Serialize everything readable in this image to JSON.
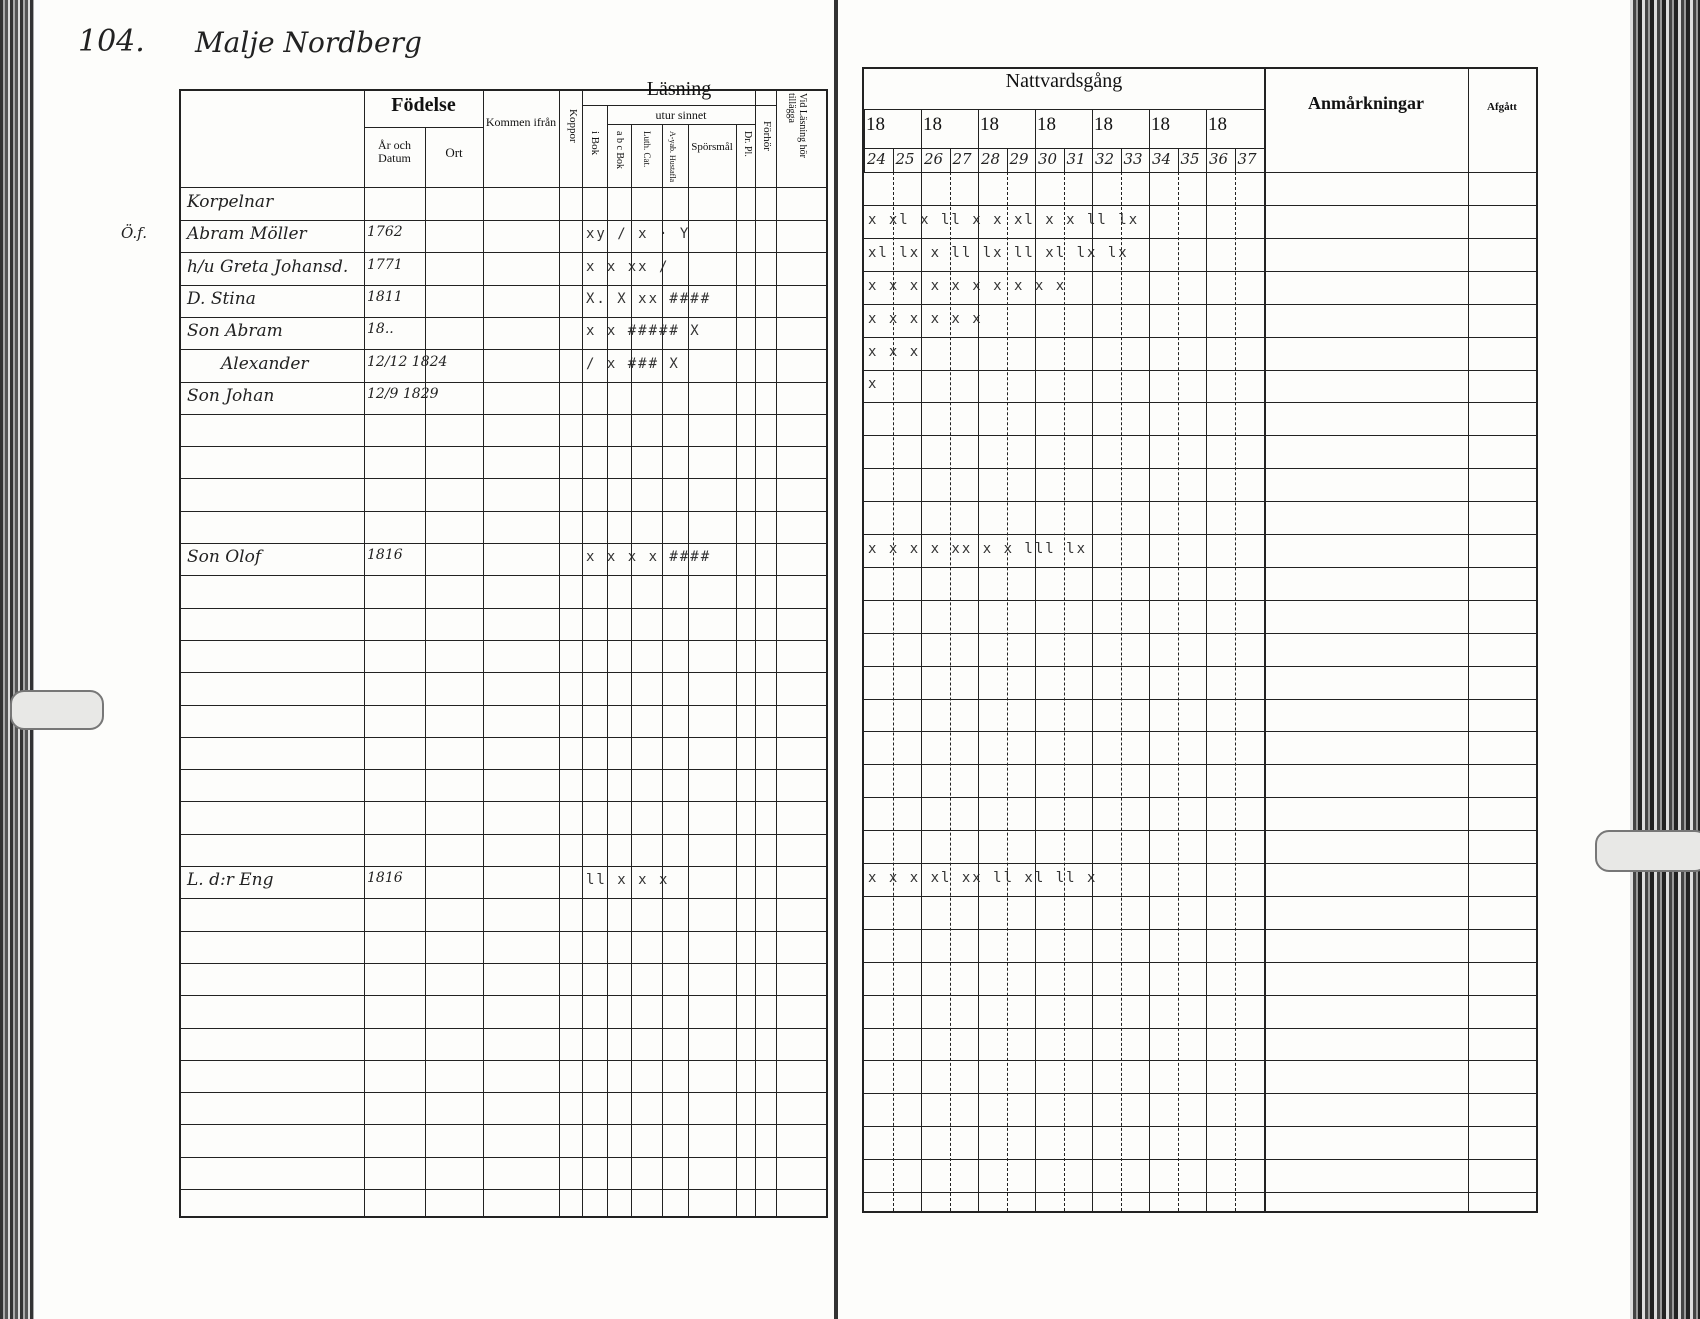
{
  "page_header": {
    "number": "104.",
    "place": "Malje Nordberg"
  },
  "left_header": {
    "fodelse": "Födelse",
    "ar_och_datum": "År och Datum",
    "ort": "Ort",
    "kommen": "Kommen ifrån",
    "koppor": "Koppor",
    "lasning": "Läsning",
    "utur_sinnet": "utur sinnet",
    "i_bok": "i Bok",
    "abc_bok": "a b c Bok",
    "luth_cat": "Luth. Cat.",
    "a_yab": "A-yab. Hustafla",
    "sporsmal": "Spörsmål",
    "dr_pl": "Dr. Pl.",
    "forhor": "Förhör",
    "vid_lasning": "Vid Läsning hör tillägga"
  },
  "right_header": {
    "nattvardsgang": "Nattvardsgång",
    "year_prefixes": [
      "18",
      "18",
      "18",
      "18",
      "18",
      "18",
      "18"
    ],
    "years": [
      "24",
      "25",
      "26",
      "27",
      "28",
      "29",
      "30",
      "31",
      "32",
      "33",
      "34",
      "35",
      "36",
      "37"
    ],
    "anmarkningar": "Anmårkningar",
    "afgatt": "Afgått"
  },
  "rows": [
    {
      "name": "Korpelnar",
      "date": "",
      "reading": "",
      "communion": ""
    },
    {
      "prefix": "Ö.f.",
      "name": "Abram Möller",
      "date": "1762",
      "reading": "xy  /  x  ·  Y",
      "communion": "x xl x ll x x  xl x x ll   lx"
    },
    {
      "name": "h/u Greta Johansd.",
      "date": "1771",
      "reading": "x  x  xx  /",
      "communion": "xl lx x ll  lx ll xl lx   lx"
    },
    {
      "name": "D. Stina",
      "date": "1811",
      "reading": "X. X xx  ####",
      "communion": "x  x x x x  x x x  x     x"
    },
    {
      "name": "Son Abram",
      "date": "18..",
      "reading": "x x ##### X",
      "communion": "      x  x x  x x      x"
    },
    {
      "name": "Alexander",
      "date": "12/12 1824",
      "reading": "/  x ### X",
      "communion": "          x  x     x"
    },
    {
      "name": "Son Johan",
      "date": "12/9 1829",
      "reading": "",
      "communion": "                      x"
    },
    {
      "name": "",
      "date": "",
      "reading": "",
      "communion": ""
    },
    {
      "name": "",
      "date": "",
      "reading": "",
      "communion": ""
    },
    {
      "name": "",
      "date": "",
      "reading": "",
      "communion": ""
    },
    {
      "name": "",
      "date": "",
      "reading": "",
      "communion": ""
    },
    {
      "name": "Son Olof",
      "date": "1816",
      "reading": "x x  x x ####",
      "communion": " x x x x xx x  x lll  lx"
    },
    {
      "name": "",
      "date": "",
      "reading": "",
      "communion": ""
    },
    {
      "name": "",
      "date": "",
      "reading": "",
      "communion": ""
    },
    {
      "name": "",
      "date": "",
      "reading": "",
      "communion": ""
    },
    {
      "name": "",
      "date": "",
      "reading": "",
      "communion": ""
    },
    {
      "name": "",
      "date": "",
      "reading": "",
      "communion": ""
    },
    {
      "name": "",
      "date": "",
      "reading": "",
      "communion": ""
    },
    {
      "name": "",
      "date": "",
      "reading": "",
      "communion": ""
    },
    {
      "name": "",
      "date": "",
      "reading": "",
      "communion": ""
    },
    {
      "name": "",
      "date": "",
      "reading": "",
      "communion": ""
    },
    {
      "name": "L. d:r Eng",
      "date": "1816",
      "reading": "ll x  x  x",
      "communion": "x x x xl xx ll xl ll x"
    },
    {
      "name": "",
      "date": "",
      "reading": "",
      "communion": ""
    },
    {
      "name": "",
      "date": "",
      "reading": "",
      "communion": ""
    },
    {
      "name": "",
      "date": "",
      "reading": "",
      "communion": ""
    },
    {
      "name": "",
      "date": "",
      "reading": "",
      "communion": ""
    },
    {
      "name": "",
      "date": "",
      "reading": "",
      "communion": ""
    },
    {
      "name": "",
      "date": "",
      "reading": "",
      "communion": ""
    },
    {
      "name": "",
      "date": "",
      "reading": "",
      "communion": ""
    },
    {
      "name": "",
      "date": "",
      "reading": "",
      "communion": ""
    },
    {
      "name": "",
      "date": "",
      "reading": "",
      "communion": ""
    }
  ]
}
